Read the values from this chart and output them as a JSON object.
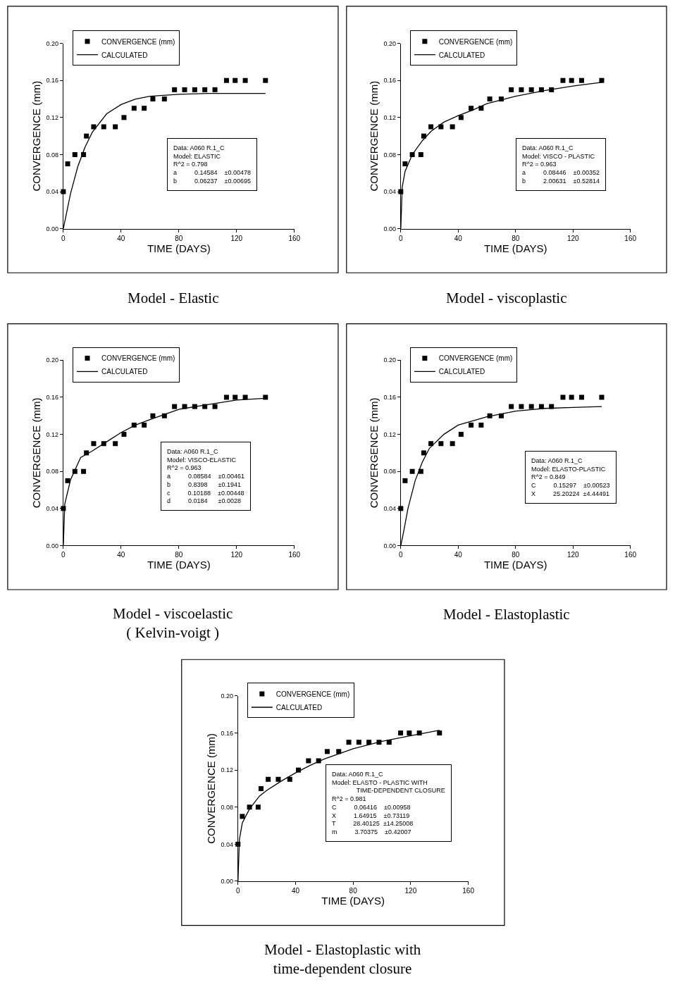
{
  "chart_data": [
    {
      "type": "scatter",
      "title": "Model - Elastic",
      "xlabel": "TIME (DAYS)",
      "ylabel": "CONVERGENCE (mm)",
      "xlim": [
        0,
        160
      ],
      "ylim": [
        0,
        0.2
      ],
      "xticks": [
        0,
        40,
        80,
        120,
        160
      ],
      "yticks": [
        {
          "value": 0,
          "label": "0.00"
        },
        {
          "value": 0.04,
          "label": "0.04"
        },
        {
          "value": 0.08,
          "label": "0.08"
        },
        {
          "value": 0.12,
          "label": "0.12"
        },
        {
          "value": 0.16,
          "label": "0.16"
        },
        {
          "value": 0.2,
          "label": "0.20"
        }
      ],
      "marker": "square",
      "legend": "top left",
      "annotations": [
        "Data: A060 R.1_C\nModel: ELASTIC\nR^2 = 0.798\na          0.14584    ±0.00478\nb          0.06237    ±0.00695"
      ],
      "series": [
        {
          "name": "CONVERGENCE (mm)",
          "color": "#000000",
          "x": [
            0,
            3,
            8,
            14,
            16,
            21,
            28,
            36,
            42,
            49,
            56,
            62,
            70,
            77,
            84,
            91,
            98,
            105,
            113,
            119,
            126,
            140
          ],
          "values": [
            0.04,
            0.07,
            0.08,
            0.08,
            0.1,
            0.11,
            0.11,
            0.11,
            0.12,
            0.13,
            0.13,
            0.14,
            0.14,
            0.15,
            0.15,
            0.15,
            0.15,
            0.15,
            0.16,
            0.16,
            0.16,
            0.16
          ]
        },
        {
          "name": "CALCULATED",
          "type": "line",
          "marker": "none",
          "color": "#000000",
          "x": [
            0,
            5,
            10,
            15,
            20,
            30,
            40,
            50,
            60,
            80,
            100,
            140
          ],
          "values": [
            0,
            0.038,
            0.067,
            0.088,
            0.104,
            0.124,
            0.134,
            0.14,
            0.143,
            0.145,
            0.146,
            0.146
          ]
        }
      ]
    },
    {
      "type": "scatter",
      "title": "Model - viscoplastic",
      "xlabel": "TIME (DAYS)",
      "ylabel": "CONVERGENCE (mm)",
      "xlim": [
        0,
        160
      ],
      "ylim": [
        0,
        0.2
      ],
      "xticks": [
        0,
        40,
        80,
        120,
        160
      ],
      "yticks": [
        {
          "value": 0,
          "label": "0.00"
        },
        {
          "value": 0.04,
          "label": "0.04"
        },
        {
          "value": 0.08,
          "label": "0.08"
        },
        {
          "value": 0.12,
          "label": "0.12"
        },
        {
          "value": 0.16,
          "label": "0.16"
        },
        {
          "value": 0.2,
          "label": "0.20"
        }
      ],
      "marker": "square",
      "legend": "top left",
      "annotations": [
        "Data: A060 R.1_C\nModel: VISCO - PLASTIC\nR^2 = 0.963\na          0.08446    ±0.00352\nb          2.00631    ±0.52814"
      ],
      "series": [
        {
          "name": "CONVERGENCE (mm)",
          "color": "#000000",
          "x": [
            0,
            3,
            8,
            14,
            16,
            21,
            28,
            36,
            42,
            49,
            56,
            62,
            70,
            77,
            84,
            91,
            98,
            105,
            113,
            119,
            126,
            140
          ],
          "values": [
            0.04,
            0.07,
            0.08,
            0.08,
            0.1,
            0.11,
            0.11,
            0.11,
            0.12,
            0.13,
            0.13,
            0.14,
            0.14,
            0.15,
            0.15,
            0.15,
            0.15,
            0.15,
            0.16,
            0.16,
            0.16,
            0.16
          ]
        },
        {
          "name": "CALCULATED",
          "type": "line",
          "marker": "none",
          "color": "#000000",
          "x": [
            0,
            1,
            3,
            8,
            15,
            21,
            30,
            40,
            50,
            60,
            80,
            100,
            120,
            140
          ],
          "values": [
            0,
            0.045,
            0.062,
            0.08,
            0.095,
            0.105,
            0.115,
            0.122,
            0.128,
            0.135,
            0.143,
            0.149,
            0.154,
            0.158
          ]
        }
      ]
    },
    {
      "type": "scatter",
      "title": "Model - viscoelastic\n( Kelvin-voigt )",
      "xlabel": "TIME (DAYS)",
      "ylabel": "CONVERGENCE (mm)",
      "xlim": [
        0,
        160
      ],
      "ylim": [
        0,
        0.2
      ],
      "xticks": [
        0,
        40,
        80,
        120,
        160
      ],
      "yticks": [
        {
          "value": 0,
          "label": "0.00"
        },
        {
          "value": 0.04,
          "label": "0.04"
        },
        {
          "value": 0.08,
          "label": "0.08"
        },
        {
          "value": 0.12,
          "label": "0.12"
        },
        {
          "value": 0.16,
          "label": "0.16"
        },
        {
          "value": 0.2,
          "label": "0.20"
        }
      ],
      "marker": "square",
      "legend": "top left",
      "annotations": [
        "Data: A060 R.1_C\nModel: VISCO-ELASTIC\nR^2 = 0.963\na          0.08584    ±0.00461\nb          0.8398      ±0.1941\nc          0.10188    ±0.00448\nd          0.0184      ±0.0028"
      ],
      "series": [
        {
          "name": "CONVERGENCE (mm)",
          "color": "#000000",
          "x": [
            0,
            3,
            8,
            14,
            16,
            21,
            28,
            36,
            42,
            49,
            56,
            62,
            70,
            77,
            84,
            91,
            98,
            105,
            113,
            119,
            126,
            140
          ],
          "values": [
            0.04,
            0.07,
            0.08,
            0.08,
            0.1,
            0.11,
            0.11,
            0.11,
            0.12,
            0.13,
            0.13,
            0.14,
            0.14,
            0.15,
            0.15,
            0.15,
            0.15,
            0.15,
            0.16,
            0.16,
            0.16,
            0.16
          ]
        },
        {
          "name": "CALCULATED",
          "type": "line",
          "marker": "none",
          "color": "#000000",
          "x": [
            0,
            1,
            5,
            12,
            20,
            30,
            40,
            50,
            60,
            80,
            100,
            120,
            140
          ],
          "values": [
            0,
            0.045,
            0.071,
            0.095,
            0.102,
            0.112,
            0.122,
            0.13,
            0.136,
            0.147,
            0.152,
            0.157,
            0.159
          ]
        }
      ]
    },
    {
      "type": "scatter",
      "title": "Model - Elastoplastic",
      "xlabel": "TIME (DAYS)",
      "ylabel": "CONVERGENCE (mm)",
      "xlim": [
        0,
        160
      ],
      "ylim": [
        0,
        0.2
      ],
      "xticks": [
        0,
        40,
        80,
        120,
        160
      ],
      "yticks": [
        {
          "value": 0,
          "label": "0.00"
        },
        {
          "value": 0.04,
          "label": "0.04"
        },
        {
          "value": 0.08,
          "label": "0.08"
        },
        {
          "value": 0.12,
          "label": "0.12"
        },
        {
          "value": 0.16,
          "label": "0.16"
        },
        {
          "value": 0.2,
          "label": "0.20"
        }
      ],
      "marker": "square",
      "legend": "top left",
      "annotations": [
        "Data: A060 R.1_C\nModel: ELASTO-PLASTIC\nR^2 = 0.849\nC          0.15297    ±0.00523\nX          25.20224  ±4.44491"
      ],
      "series": [
        {
          "name": "CONVERGENCE (mm)",
          "color": "#000000",
          "x": [
            0,
            3,
            8,
            14,
            16,
            21,
            28,
            36,
            42,
            49,
            56,
            62,
            70,
            77,
            84,
            91,
            98,
            105,
            113,
            119,
            126,
            140
          ],
          "values": [
            0.04,
            0.07,
            0.08,
            0.08,
            0.1,
            0.11,
            0.11,
            0.11,
            0.12,
            0.13,
            0.13,
            0.14,
            0.14,
            0.15,
            0.15,
            0.15,
            0.15,
            0.15,
            0.16,
            0.16,
            0.16,
            0.16
          ]
        },
        {
          "name": "CALCULATED",
          "type": "line",
          "marker": "none",
          "color": "#000000",
          "x": [
            0,
            2,
            5,
            10,
            15,
            20,
            30,
            40,
            60,
            80,
            100,
            120,
            140
          ],
          "values": [
            0,
            0.015,
            0.04,
            0.07,
            0.09,
            0.105,
            0.12,
            0.13,
            0.139,
            0.145,
            0.148,
            0.149,
            0.15
          ]
        }
      ]
    },
    {
      "type": "scatter",
      "title": "Model - Elastoplastic with\ntime-dependent closure",
      "xlabel": "TIME (DAYS)",
      "ylabel": "CONVERGENCE (mm)",
      "xlim": [
        0,
        160
      ],
      "ylim": [
        0,
        0.2
      ],
      "xticks": [
        0,
        40,
        80,
        120,
        160
      ],
      "yticks": [
        {
          "value": 0,
          "label": "0.00"
        },
        {
          "value": 0.04,
          "label": "0.04"
        },
        {
          "value": 0.08,
          "label": "0.08"
        },
        {
          "value": 0.12,
          "label": "0.12"
        },
        {
          "value": 0.16,
          "label": "0.16"
        },
        {
          "value": 0.2,
          "label": "0.20"
        }
      ],
      "marker": "square",
      "legend": "top left",
      "annotations": [
        "Data: A060 R.1_C\nModel: ELASTO - PLASTIC WITH\n              TIME-DEPENDENT CLOSURE\nR^2 = 0.981\nC          0.06416    ±0.00958\nX          1.64915    ±0.73119\nT          28.40125  ±14.25008\nm          3.70375    ±0.42007"
      ],
      "series": [
        {
          "name": "CONVERGENCE (mm)",
          "color": "#000000",
          "x": [
            0,
            3,
            8,
            14,
            16,
            21,
            28,
            36,
            42,
            49,
            56,
            62,
            70,
            77,
            84,
            91,
            98,
            105,
            113,
            119,
            126,
            140
          ],
          "values": [
            0.04,
            0.07,
            0.08,
            0.08,
            0.1,
            0.11,
            0.11,
            0.11,
            0.12,
            0.13,
            0.13,
            0.14,
            0.14,
            0.15,
            0.15,
            0.15,
            0.15,
            0.15,
            0.16,
            0.16,
            0.16,
            0.16
          ]
        },
        {
          "name": "CALCULATED",
          "type": "line",
          "marker": "none",
          "color": "#000000",
          "x": [
            0,
            1,
            3,
            8,
            15,
            20,
            30,
            40,
            50,
            60,
            80,
            100,
            120,
            140
          ],
          "values": [
            0,
            0.045,
            0.063,
            0.078,
            0.092,
            0.098,
            0.108,
            0.117,
            0.125,
            0.132,
            0.143,
            0.151,
            0.157,
            0.163
          ]
        }
      ]
    }
  ]
}
